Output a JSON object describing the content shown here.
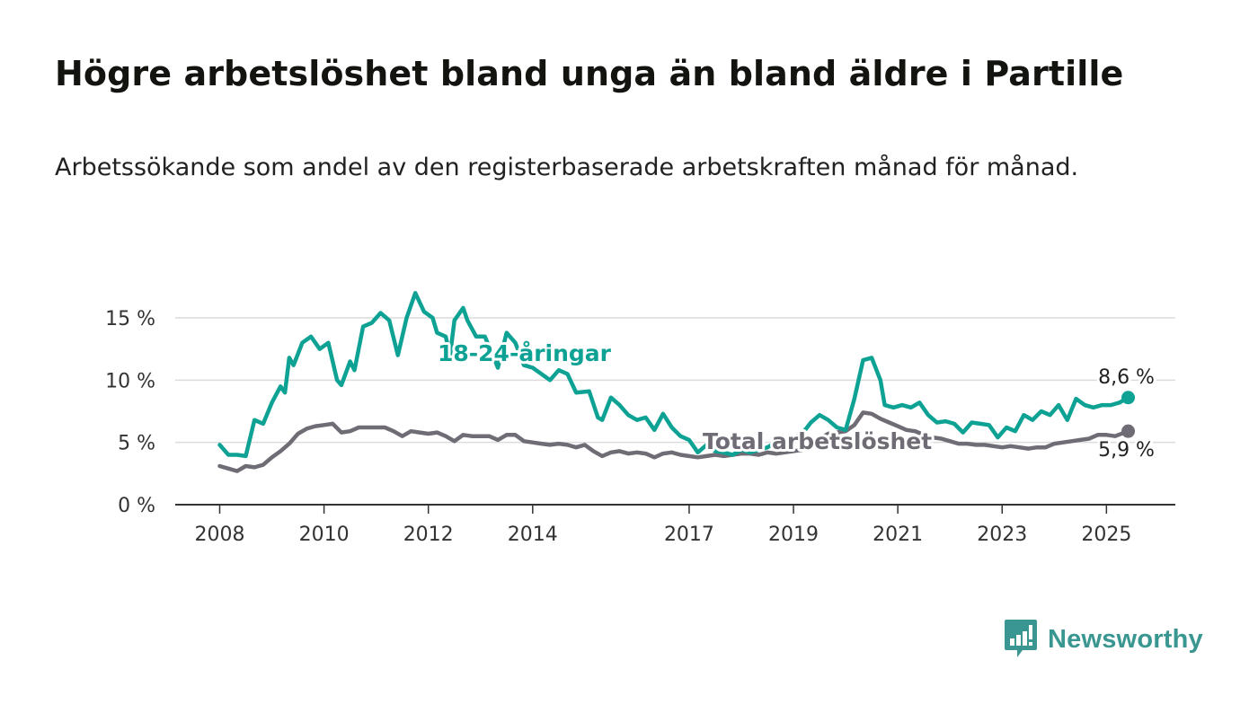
{
  "title": "Högre arbetslöshet bland unga än bland äldre i Partille",
  "subtitle": "Arbetssökande som andel av den registerbaserade arbetskraften månad för månad.",
  "logo": {
    "text": "Newsworthy",
    "icon": "bar-chart-speech-bubble-icon"
  },
  "colors": {
    "youth": "#0ea294",
    "total": "#706c76",
    "grid": "#dcdcdc",
    "axis": "#333333",
    "logo": "#3a9690"
  },
  "chart_data": {
    "type": "line",
    "title": "Högre arbetslöshet bland unga än bland äldre i Partille",
    "subtitle": "Arbetssökande som andel av den registerbaserade arbetskraften månad för månad.",
    "xlabel": "",
    "ylabel": "",
    "x_ticks": [
      "2008",
      "2010",
      "2012",
      "2014",
      "2017",
      "2019",
      "2021",
      "2023",
      "2025"
    ],
    "y_ticks": [
      "0 %",
      "5 %",
      "10 %",
      "15 %"
    ],
    "ylim": [
      0,
      15
    ],
    "grid": true,
    "series": [
      {
        "name": "18-24-åringar",
        "color": "#0ea294",
        "end_label": "8,6 %",
        "points": [
          [
            "2008-01",
            4.8
          ],
          [
            "2008-03",
            4.0
          ],
          [
            "2008-05",
            4.0
          ],
          [
            "2008-07",
            3.9
          ],
          [
            "2008-09",
            6.8
          ],
          [
            "2008-11",
            6.5
          ],
          [
            "2009-01",
            8.2
          ],
          [
            "2009-03",
            9.5
          ],
          [
            "2009-04",
            9.0
          ],
          [
            "2009-05",
            11.8
          ],
          [
            "2009-06",
            11.2
          ],
          [
            "2009-08",
            13.0
          ],
          [
            "2009-10",
            13.5
          ],
          [
            "2009-12",
            12.5
          ],
          [
            "2010-02",
            13.0
          ],
          [
            "2010-04",
            10.0
          ],
          [
            "2010-05",
            9.6
          ],
          [
            "2010-07",
            11.5
          ],
          [
            "2010-08",
            10.8
          ],
          [
            "2010-10",
            14.3
          ],
          [
            "2010-12",
            14.6
          ],
          [
            "2011-02",
            15.4
          ],
          [
            "2011-04",
            14.8
          ],
          [
            "2011-06",
            12.0
          ],
          [
            "2011-08",
            15.0
          ],
          [
            "2011-10",
            17.0
          ],
          [
            "2011-12",
            15.5
          ],
          [
            "2012-02",
            15.0
          ],
          [
            "2012-03",
            13.8
          ],
          [
            "2012-05",
            13.5
          ],
          [
            "2012-06",
            12.0
          ],
          [
            "2012-07",
            14.8
          ],
          [
            "2012-09",
            15.8
          ],
          [
            "2012-10",
            14.8
          ],
          [
            "2012-12",
            13.5
          ],
          [
            "2013-02",
            13.5
          ],
          [
            "2013-05",
            11.0
          ],
          [
            "2013-07",
            13.8
          ],
          [
            "2013-09",
            13.0
          ],
          [
            "2013-11",
            11.2
          ],
          [
            "2014-01",
            11.0
          ],
          [
            "2014-03",
            10.5
          ],
          [
            "2014-05",
            10.0
          ],
          [
            "2014-07",
            10.8
          ],
          [
            "2014-09",
            10.5
          ],
          [
            "2014-11",
            9.0
          ],
          [
            "2015-02",
            9.1
          ],
          [
            "2015-04",
            7.0
          ],
          [
            "2015-05",
            6.8
          ],
          [
            "2015-07",
            8.6
          ],
          [
            "2015-09",
            8.0
          ],
          [
            "2015-11",
            7.2
          ],
          [
            "2016-01",
            6.8
          ],
          [
            "2016-03",
            7.0
          ],
          [
            "2016-05",
            6.0
          ],
          [
            "2016-07",
            7.3
          ],
          [
            "2016-09",
            6.2
          ],
          [
            "2016-11",
            5.5
          ],
          [
            "2017-01",
            5.2
          ],
          [
            "2017-03",
            4.2
          ],
          [
            "2017-05",
            4.8
          ],
          [
            "2017-07",
            4.3
          ],
          [
            "2017-09",
            4.2
          ],
          [
            "2017-11",
            4.0
          ],
          [
            "2018-01",
            4.4
          ],
          [
            "2018-03",
            4.2
          ],
          [
            "2018-05",
            4.4
          ],
          [
            "2018-07",
            4.6
          ],
          [
            "2018-09",
            5.0
          ],
          [
            "2018-11",
            5.2
          ],
          [
            "2019-01",
            5.4
          ],
          [
            "2019-03",
            5.7
          ],
          [
            "2019-05",
            6.6
          ],
          [
            "2019-07",
            7.2
          ],
          [
            "2019-09",
            6.8
          ],
          [
            "2019-11",
            6.2
          ],
          [
            "2020-01",
            6.0
          ],
          [
            "2020-03",
            8.5
          ],
          [
            "2020-05",
            11.6
          ],
          [
            "2020-07",
            11.8
          ],
          [
            "2020-09",
            10.0
          ],
          [
            "2020-10",
            8.0
          ],
          [
            "2020-12",
            7.8
          ],
          [
            "2021-02",
            8.0
          ],
          [
            "2021-04",
            7.8
          ],
          [
            "2021-06",
            8.2
          ],
          [
            "2021-08",
            7.2
          ],
          [
            "2021-10",
            6.6
          ],
          [
            "2021-12",
            6.7
          ],
          [
            "2022-02",
            6.5
          ],
          [
            "2022-04",
            5.8
          ],
          [
            "2022-06",
            6.6
          ],
          [
            "2022-08",
            6.5
          ],
          [
            "2022-10",
            6.4
          ],
          [
            "2022-12",
            5.4
          ],
          [
            "2023-02",
            6.2
          ],
          [
            "2023-04",
            5.9
          ],
          [
            "2023-06",
            7.2
          ],
          [
            "2023-08",
            6.8
          ],
          [
            "2023-10",
            7.5
          ],
          [
            "2023-12",
            7.2
          ],
          [
            "2024-02",
            8.0
          ],
          [
            "2024-04",
            6.8
          ],
          [
            "2024-06",
            8.5
          ],
          [
            "2024-08",
            8.0
          ],
          [
            "2024-10",
            7.8
          ],
          [
            "2024-12",
            8.0
          ],
          [
            "2025-02",
            8.0
          ],
          [
            "2025-04",
            8.2
          ],
          [
            "2025-06",
            8.6
          ]
        ]
      },
      {
        "name": "Total arbetslöshet",
        "color": "#706c76",
        "end_label": "5,9 %",
        "points": [
          [
            "2008-01",
            3.1
          ],
          [
            "2008-03",
            2.9
          ],
          [
            "2008-05",
            2.7
          ],
          [
            "2008-07",
            3.1
          ],
          [
            "2008-09",
            3.0
          ],
          [
            "2008-11",
            3.2
          ],
          [
            "2009-01",
            3.8
          ],
          [
            "2009-03",
            4.3
          ],
          [
            "2009-05",
            4.9
          ],
          [
            "2009-07",
            5.7
          ],
          [
            "2009-09",
            6.1
          ],
          [
            "2009-11",
            6.3
          ],
          [
            "2010-01",
            6.4
          ],
          [
            "2010-03",
            6.5
          ],
          [
            "2010-05",
            5.8
          ],
          [
            "2010-07",
            5.9
          ],
          [
            "2010-09",
            6.2
          ],
          [
            "2010-11",
            6.2
          ],
          [
            "2011-01",
            6.2
          ],
          [
            "2011-03",
            6.2
          ],
          [
            "2011-05",
            5.9
          ],
          [
            "2011-07",
            5.5
          ],
          [
            "2011-09",
            5.9
          ],
          [
            "2011-11",
            5.8
          ],
          [
            "2012-01",
            5.7
          ],
          [
            "2012-03",
            5.8
          ],
          [
            "2012-05",
            5.5
          ],
          [
            "2012-07",
            5.1
          ],
          [
            "2012-09",
            5.6
          ],
          [
            "2012-11",
            5.5
          ],
          [
            "2013-01",
            5.5
          ],
          [
            "2013-03",
            5.5
          ],
          [
            "2013-05",
            5.2
          ],
          [
            "2013-07",
            5.6
          ],
          [
            "2013-09",
            5.6
          ],
          [
            "2013-11",
            5.1
          ],
          [
            "2014-01",
            5.0
          ],
          [
            "2014-03",
            4.9
          ],
          [
            "2014-05",
            4.8
          ],
          [
            "2014-07",
            4.9
          ],
          [
            "2014-09",
            4.8
          ],
          [
            "2014-11",
            4.6
          ],
          [
            "2015-01",
            4.8
          ],
          [
            "2015-03",
            4.3
          ],
          [
            "2015-05",
            3.9
          ],
          [
            "2015-07",
            4.2
          ],
          [
            "2015-09",
            4.3
          ],
          [
            "2015-11",
            4.1
          ],
          [
            "2016-01",
            4.2
          ],
          [
            "2016-03",
            4.1
          ],
          [
            "2016-05",
            3.8
          ],
          [
            "2016-07",
            4.1
          ],
          [
            "2016-09",
            4.2
          ],
          [
            "2016-11",
            4.0
          ],
          [
            "2017-01",
            3.9
          ],
          [
            "2017-03",
            3.8
          ],
          [
            "2017-05",
            3.9
          ],
          [
            "2017-07",
            4.0
          ],
          [
            "2017-09",
            3.9
          ],
          [
            "2017-11",
            4.0
          ],
          [
            "2018-01",
            4.1
          ],
          [
            "2018-03",
            4.1
          ],
          [
            "2018-05",
            4.0
          ],
          [
            "2018-07",
            4.2
          ],
          [
            "2018-09",
            4.1
          ],
          [
            "2018-11",
            4.2
          ],
          [
            "2019-01",
            4.3
          ],
          [
            "2019-03",
            4.4
          ],
          [
            "2019-05",
            4.8
          ],
          [
            "2019-07",
            5.3
          ],
          [
            "2019-09",
            5.7
          ],
          [
            "2019-11",
            5.8
          ],
          [
            "2020-01",
            5.9
          ],
          [
            "2020-03",
            6.4
          ],
          [
            "2020-05",
            7.4
          ],
          [
            "2020-07",
            7.3
          ],
          [
            "2020-09",
            6.9
          ],
          [
            "2020-11",
            6.6
          ],
          [
            "2021-01",
            6.3
          ],
          [
            "2021-03",
            6.0
          ],
          [
            "2021-05",
            5.9
          ],
          [
            "2021-07",
            5.6
          ],
          [
            "2021-09",
            5.4
          ],
          [
            "2021-11",
            5.3
          ],
          [
            "2022-01",
            5.1
          ],
          [
            "2022-03",
            4.9
          ],
          [
            "2022-05",
            4.9
          ],
          [
            "2022-07",
            4.8
          ],
          [
            "2022-09",
            4.8
          ],
          [
            "2022-11",
            4.7
          ],
          [
            "2023-01",
            4.6
          ],
          [
            "2023-03",
            4.7
          ],
          [
            "2023-05",
            4.6
          ],
          [
            "2023-07",
            4.5
          ],
          [
            "2023-09",
            4.6
          ],
          [
            "2023-11",
            4.6
          ],
          [
            "2024-01",
            4.9
          ],
          [
            "2024-03",
            5.0
          ],
          [
            "2024-05",
            5.1
          ],
          [
            "2024-07",
            5.2
          ],
          [
            "2024-09",
            5.3
          ],
          [
            "2024-11",
            5.6
          ],
          [
            "2025-01",
            5.6
          ],
          [
            "2025-03",
            5.5
          ],
          [
            "2025-06",
            5.9
          ]
        ]
      }
    ]
  }
}
